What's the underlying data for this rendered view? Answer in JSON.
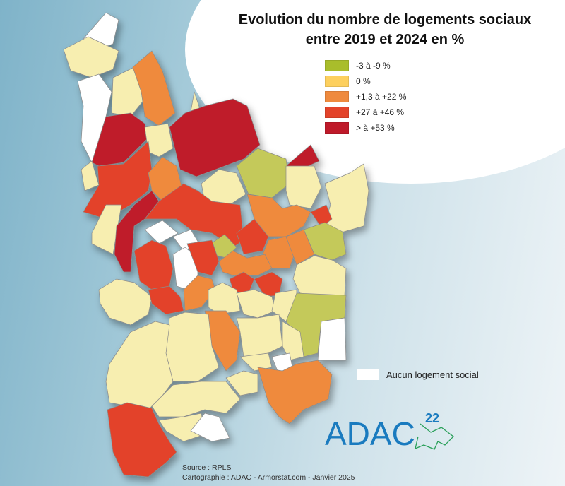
{
  "title": {
    "line1": "Evolution du nombre de logements sociaux",
    "line2": "entre 2019 et 2024 en %"
  },
  "legend": [
    {
      "label": "-3 à -9 %",
      "color": "#a9bd2b"
    },
    {
      "label": "0 %",
      "color": "#fdd05e"
    },
    {
      "label": "+1,3 à +22 %",
      "color": "#ef8a3e"
    },
    {
      "label": "+27 à +46 %",
      "color": "#e3432a"
    },
    {
      "label": "> à +53 %",
      "color": "#bf1a2a"
    }
  ],
  "no_housing": {
    "label": "Aucun logement social",
    "color": "#ffffff"
  },
  "source": {
    "line1": "Source : RPLS",
    "line2": "Cartographie : ADAC - Armorstat.com - Janvier 2025"
  },
  "logo": {
    "text": "ADAC",
    "superscript": "22",
    "color": "#1a7bbf"
  }
}
